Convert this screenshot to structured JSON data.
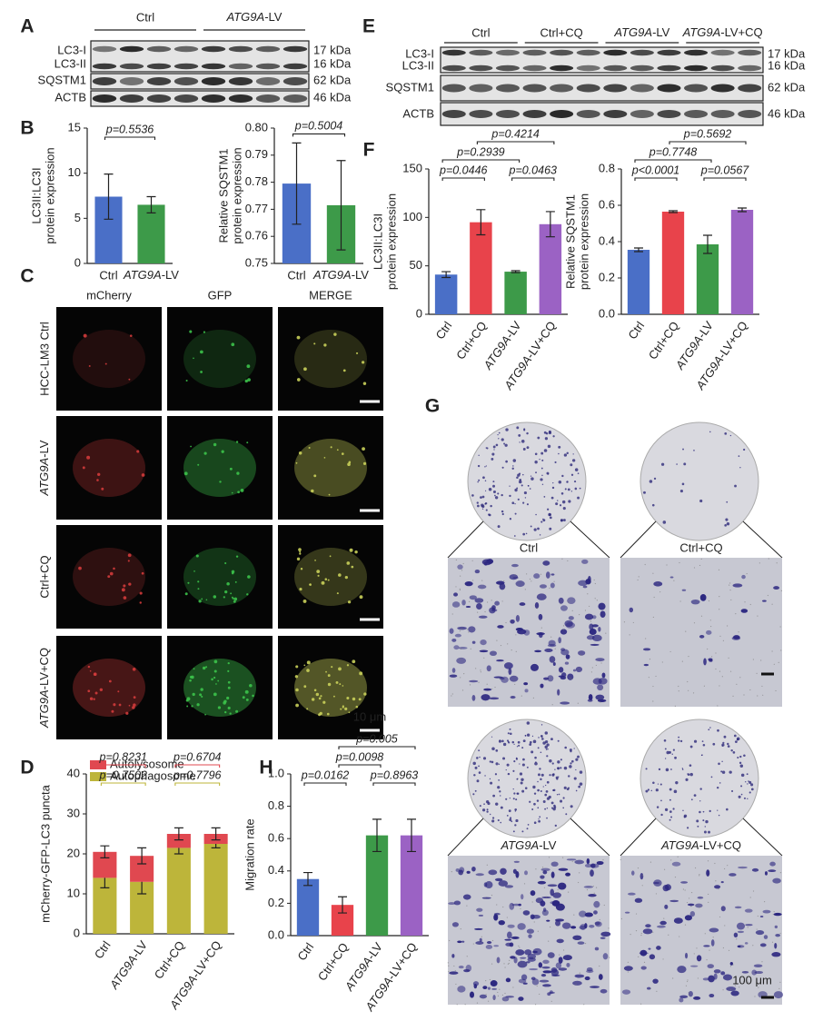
{
  "panel_labels": [
    "A",
    "B",
    "C",
    "D",
    "E",
    "F",
    "G",
    "H"
  ],
  "blots": [
    {
      "groups": [
        "Ctrl",
        "ATG9A-LV"
      ],
      "rows": [
        {
          "label": "LC3-I",
          "size": "17 kDa"
        },
        {
          "label": "LC3-II",
          "size": "16 kDa"
        },
        {
          "label": "SQSTM1",
          "size": "62 kDa"
        },
        {
          "label": "ACTB",
          "size": "46 kDa"
        }
      ]
    },
    {
      "groups": [
        "Ctrl",
        "Ctrl+CQ",
        "ATG9A-LV",
        "ATG9A-LV+CQ"
      ],
      "rows": [
        {
          "label": "LC3-I",
          "size": "17 kDa"
        },
        {
          "label": "LC3-II",
          "size": "16 kDa"
        },
        {
          "label": "SQSTM1",
          "size": "62 kDa"
        },
        {
          "label": "ACTB",
          "size": "46 kDa"
        }
      ]
    }
  ],
  "microscopy": {
    "columns": [
      "mCherry",
      "GFP",
      "MERGE"
    ],
    "rows": [
      "HCC-LM3 Ctrl",
      "ATG9A-LV",
      "Ctrl+CQ",
      "ATG9A-LV+CQ"
    ],
    "scale_bar": "10 μm"
  },
  "transwell": {
    "groups": [
      "Ctrl",
      "Ctrl+CQ",
      "ATG9A-LV",
      "ATG9A-LV+CQ"
    ],
    "scale_bar": "100 μm"
  },
  "chart_data": [
    {
      "type": "bar",
      "ylabel": [
        "LC3II:LC3I",
        "protein expression"
      ],
      "categories": [
        "Ctrl",
        "ATG9A-LV"
      ],
      "values": [
        7.4,
        6.5
      ],
      "errors": [
        2.5,
        0.9
      ],
      "colors": [
        "#4a6fc7",
        "#3d9a49"
      ],
      "ylim": [
        0,
        15
      ],
      "yticks": [
        0,
        5,
        10,
        15
      ],
      "annotations": [
        {
          "text": "p=0.5536",
          "from": "Ctrl",
          "to": "ATG9A-LV"
        }
      ]
    },
    {
      "type": "bar",
      "ylabel": [
        "Relative SQSTM1",
        "protein expression"
      ],
      "categories": [
        "Ctrl",
        "ATG9A-LV"
      ],
      "values": [
        0.7795,
        0.7715
      ],
      "errors": [
        0.015,
        0.0165
      ],
      "colors": [
        "#4a6fc7",
        "#3d9a49"
      ],
      "ylim": [
        0.75,
        0.8
      ],
      "yticks": [
        {
          "value": 0.75,
          "label": "0.75"
        },
        {
          "value": 0.76,
          "label": "0.76"
        },
        {
          "value": 0.77,
          "label": "0.77"
        },
        {
          "value": 0.78,
          "label": "0.78"
        },
        {
          "value": 0.79,
          "label": "0.79"
        },
        {
          "value": 0.8,
          "label": "0.80"
        }
      ],
      "annotations": [
        {
          "text": "p=0.5004",
          "from": "Ctrl",
          "to": "ATG9A-LV"
        }
      ]
    },
    {
      "type": "bar",
      "ylabel": [
        "LC3II:LC3I",
        "protein expression"
      ],
      "categories": [
        "Ctrl",
        "Ctrl+CQ",
        "ATG9A-LV",
        "ATG9A-LV+CQ"
      ],
      "values": [
        41,
        95,
        44,
        93
      ],
      "errors": [
        3,
        13,
        1,
        13
      ],
      "colors": [
        "#4a6fc7",
        "#e8434b",
        "#3d9a49",
        "#9b62c4"
      ],
      "ylim": [
        0,
        150
      ],
      "yticks": [
        0,
        50,
        100,
        150
      ],
      "annotations": [
        {
          "text": "p=0.0446",
          "from": "Ctrl",
          "to": "Ctrl+CQ"
        },
        {
          "text": "p=0.0463",
          "from": "ATG9A-LV",
          "to": "ATG9A-LV+CQ"
        },
        {
          "text": "p=0.2939",
          "from": "Ctrl",
          "to": "ATG9A-LV"
        },
        {
          "text": "p=0.4214",
          "from": "Ctrl+CQ",
          "to": "ATG9A-LV+CQ"
        }
      ]
    },
    {
      "type": "bar",
      "ylabel": [
        "Relative SQSTM1",
        "protein expression"
      ],
      "categories": [
        "Ctrl",
        "Ctrl+CQ",
        "ATG9A-LV",
        "ATG9A-LV+CQ"
      ],
      "values": [
        0.355,
        0.565,
        0.385,
        0.575
      ],
      "errors": [
        0.01,
        0.005,
        0.05,
        0.01
      ],
      "colors": [
        "#4a6fc7",
        "#e8434b",
        "#3d9a49",
        "#9b62c4"
      ],
      "ylim": [
        0,
        0.8
      ],
      "yticks": [
        {
          "value": 0,
          "label": "0.0"
        },
        0.2,
        0.4,
        0.6,
        0.8
      ],
      "annotations": [
        {
          "text": "p<0.0001",
          "from": "Ctrl",
          "to": "Ctrl+CQ"
        },
        {
          "text": "p=0.0567",
          "from": "ATG9A-LV",
          "to": "ATG9A-LV+CQ"
        },
        {
          "text": "p=0.7748",
          "from": "Ctrl",
          "to": "ATG9A-LV"
        },
        {
          "text": "p=0.5692",
          "from": "Ctrl+CQ",
          "to": "ATG9A-LV+CQ"
        }
      ]
    },
    {
      "type": "bar",
      "stacked": true,
      "legend": "top-left",
      "ylabel": [
        "mCherry-GFP-LC3 puncta"
      ],
      "categories": [
        "Ctrl",
        "ATG9A-LV",
        "Ctrl+CQ",
        "ATG9A-LV+CQ"
      ],
      "series": [
        {
          "name": "Autophagosome",
          "color": "#bdb53a",
          "values": [
            14,
            13,
            21.5,
            22.5
          ],
          "errors": [
            2.5,
            3,
            1.5,
            1
          ]
        },
        {
          "name": "Autolysosome",
          "color": "#e04850",
          "values": [
            6.5,
            6.5,
            3.5,
            2.5
          ],
          "errors": [
            1.5,
            2,
            1.5,
            1.5
          ]
        }
      ],
      "ylim": [
        0,
        40
      ],
      "yticks": [
        0,
        10,
        20,
        30,
        40
      ],
      "annotations": [
        {
          "text": "p=0.7502",
          "from": "Ctrl",
          "to": "ATG9A-LV",
          "series": "Autophagosome"
        },
        {
          "text": "p=0.8231",
          "from": "Ctrl",
          "to": "ATG9A-LV",
          "series": "Autolysosome"
        },
        {
          "text": "p=0.7796",
          "from": "Ctrl+CQ",
          "to": "ATG9A-LV+CQ",
          "series": "Autophagosome"
        },
        {
          "text": "p=0.6704",
          "from": "Ctrl+CQ",
          "to": "ATG9A-LV+CQ",
          "series": "Autolysosome"
        }
      ]
    },
    {
      "type": "bar",
      "ylabel": [
        "Migration rate"
      ],
      "categories": [
        "Ctrl",
        "Ctrl+CQ",
        "ATG9A-LV",
        "ATG9A-LV+CQ"
      ],
      "values": [
        0.35,
        0.19,
        0.62,
        0.62
      ],
      "errors": [
        0.04,
        0.05,
        0.1,
        0.1
      ],
      "colors": [
        "#4a6fc7",
        "#e8434b",
        "#3d9a49",
        "#9b62c4"
      ],
      "ylim": [
        0,
        1
      ],
      "yticks": [
        {
          "value": 0,
          "label": "0.0"
        },
        0.2,
        0.4,
        0.6,
        0.8,
        {
          "value": 1,
          "label": "1.0"
        }
      ],
      "annotations": [
        {
          "text": "p=0.0162",
          "from": "Ctrl",
          "to": "Ctrl+CQ"
        },
        {
          "text": "p=0.8963",
          "from": "ATG9A-LV",
          "to": "ATG9A-LV+CQ"
        },
        {
          "text": "p=0.0098",
          "from": "Ctrl+CQ",
          "to": "ATG9A-LV"
        },
        {
          "text": "p=0.005",
          "from": "Ctrl+CQ",
          "to": "ATG9A-LV+CQ"
        }
      ]
    }
  ]
}
